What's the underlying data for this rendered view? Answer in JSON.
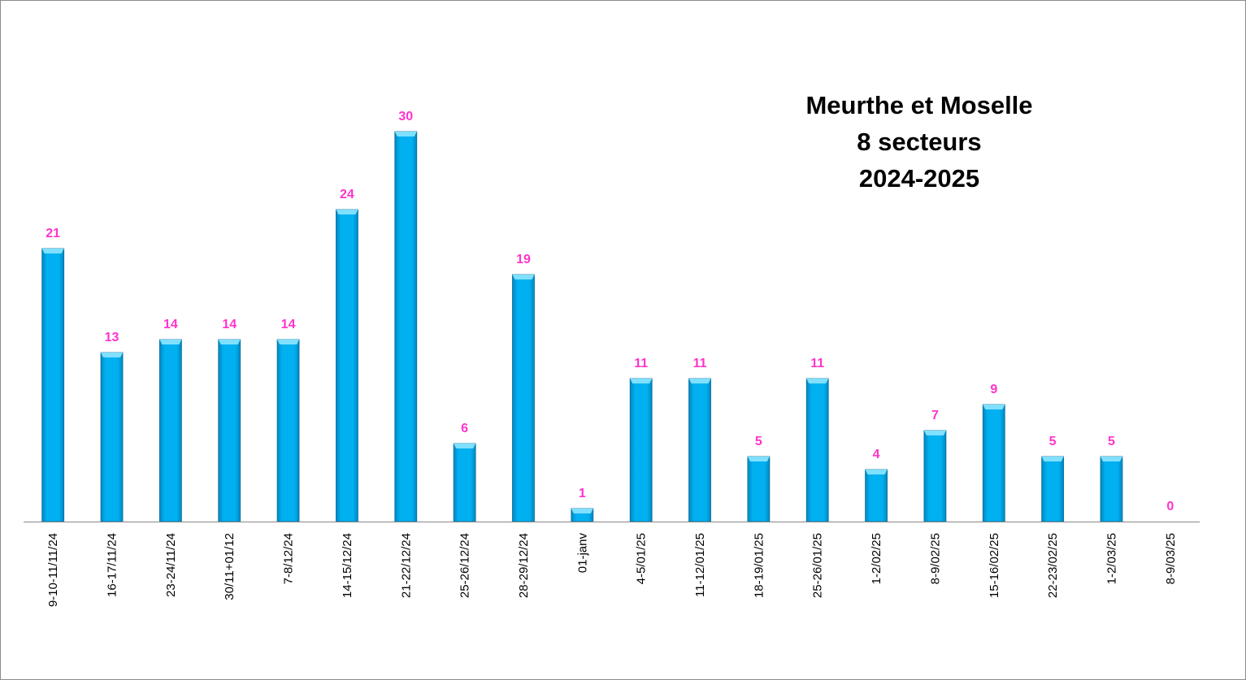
{
  "chart_data": {
    "type": "bar",
    "title_lines": [
      "Meurthe et Moselle",
      "8 secteurs",
      "2024-2025"
    ],
    "categories": [
      "9-10-11/11/24",
      "16-17/11/24",
      "23-24/11/24",
      "30/11+01/12",
      "7-8/12/24",
      "14-15/12/24",
      "21-22/12/24",
      "25-26/12/24",
      "28-29/12/24",
      "01-janv",
      "4-5/01/25",
      "11-12/01/25",
      "18-19/01/25",
      "25-26/01/25",
      "1-2/02/25",
      "8-9/02/25",
      "15-16/02/25",
      "22-23/02/25",
      "1-2/03/25",
      "8-9/03/25"
    ],
    "values": [
      21,
      13,
      14,
      14,
      14,
      24,
      30,
      6,
      19,
      1,
      11,
      11,
      5,
      11,
      4,
      7,
      9,
      5,
      5,
      0
    ],
    "ylim": [
      0,
      30
    ],
    "xlabel": "",
    "ylabel": "",
    "grid": false,
    "legend": "none",
    "colors": {
      "bar": "#00b0f0",
      "bar_light": "#7fe0ff",
      "bar_dark": "#0086c0",
      "bar_edge": "#0a6e98",
      "data_label": "#ff33cc",
      "axis": "#888888"
    }
  }
}
